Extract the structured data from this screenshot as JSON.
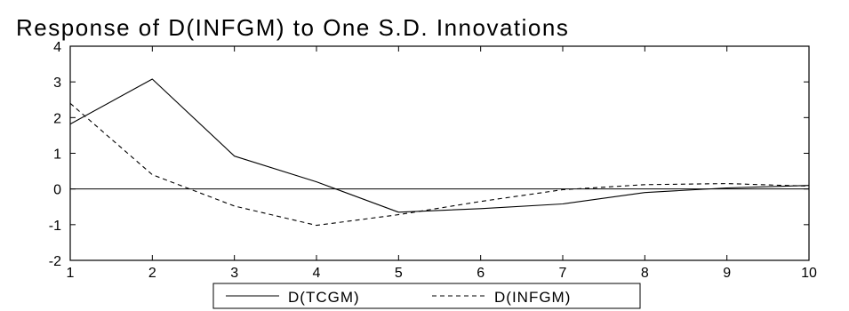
{
  "chart_data": {
    "type": "line",
    "title": "Response of D(INFGM) to One S.D. Innovations",
    "xlabel": "",
    "ylabel": "",
    "x": [
      1,
      2,
      3,
      4,
      5,
      6,
      7,
      8,
      9,
      10
    ],
    "xlim": [
      1,
      10
    ],
    "ylim": [
      -2,
      4
    ],
    "x_ticks": [
      "1",
      "2",
      "3",
      "4",
      "5",
      "6",
      "7",
      "8",
      "9",
      "10"
    ],
    "y_ticks": [
      "4",
      "3",
      "2",
      "1",
      "0",
      "-1",
      "-2"
    ],
    "grid": false,
    "zero_line": true,
    "legend_position": "bottom-center",
    "series": [
      {
        "name": "D(TCGM)",
        "style": "solid",
        "color": "#000000",
        "values": [
          1.82,
          3.08,
          0.92,
          0.2,
          -0.65,
          -0.55,
          -0.42,
          -0.1,
          0.03,
          0.1
        ]
      },
      {
        "name": "D(INFGM)",
        "style": "dashed",
        "color": "#000000",
        "values": [
          2.4,
          0.4,
          -0.48,
          -1.02,
          -0.72,
          -0.35,
          -0.02,
          0.12,
          0.15,
          0.08
        ]
      }
    ]
  }
}
